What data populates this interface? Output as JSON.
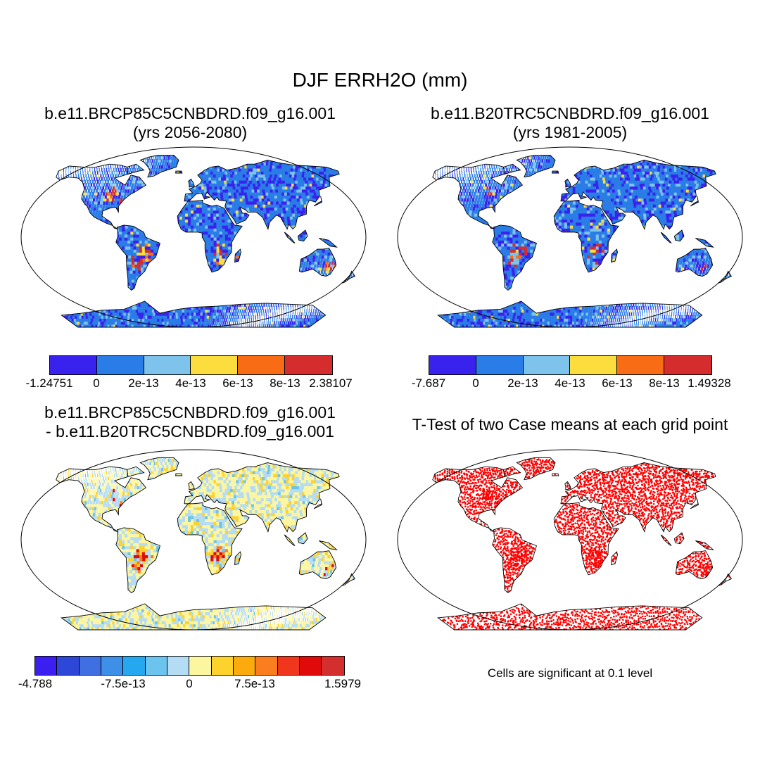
{
  "title": "DJF ERRH2O (mm)",
  "panels": [
    {
      "title_line1": "b.e11.BRCP85C5CNBDRD.f09_g16.001",
      "title_line2": "(yrs 2056-2080)",
      "colorbar": {
        "labels": [
          "-1.24751",
          "0",
          "2e-13",
          "4e-13",
          "6e-13",
          "8e-13",
          "2.38107"
        ],
        "colors": [
          "#3a22ee",
          "#2a7ce6",
          "#7ec3ec",
          "#fbdd3e",
          "#f86c16",
          "#d52d2d"
        ]
      }
    },
    {
      "title_line1": "b.e11.B20TRC5CNBDRD.f09_g16.001",
      "title_line2": "(yrs 1981-2005)",
      "colorbar": {
        "labels": [
          "-7.687",
          "0",
          "2e-13",
          "4e-13",
          "6e-13",
          "8e-13",
          "1.49328"
        ],
        "colors": [
          "#3a22ee",
          "#2a7ce6",
          "#7ec3ec",
          "#fbdd3e",
          "#f86c16",
          "#d52d2d"
        ]
      }
    },
    {
      "title_line1": "b.e11.BRCP85C5CNBDRD.f09_g16.001",
      "title_line2": "- b.e11.B20TRC5CNBDRD.f09_g16.001",
      "colorbar": {
        "labels": [
          "-4.788",
          "-7.5e-13",
          "0",
          "7.5e-13",
          "1.5979"
        ],
        "colors": [
          "#3b1ef0",
          "#2d47d8",
          "#3f6fe0",
          "#3d8fe8",
          "#26a8f0",
          "#6cc4ee",
          "#b4dcf4",
          "#fdf6a0",
          "#fed22c",
          "#fbab0c",
          "#fa7d20",
          "#f0361c",
          "#e00a0a",
          "#d32f2f"
        ]
      }
    },
    {
      "title_line1": "T-Test of two Case means at each grid point",
      "title_line2": ""
    }
  ],
  "footnote": "Cells are significant at 0.1 level"
}
